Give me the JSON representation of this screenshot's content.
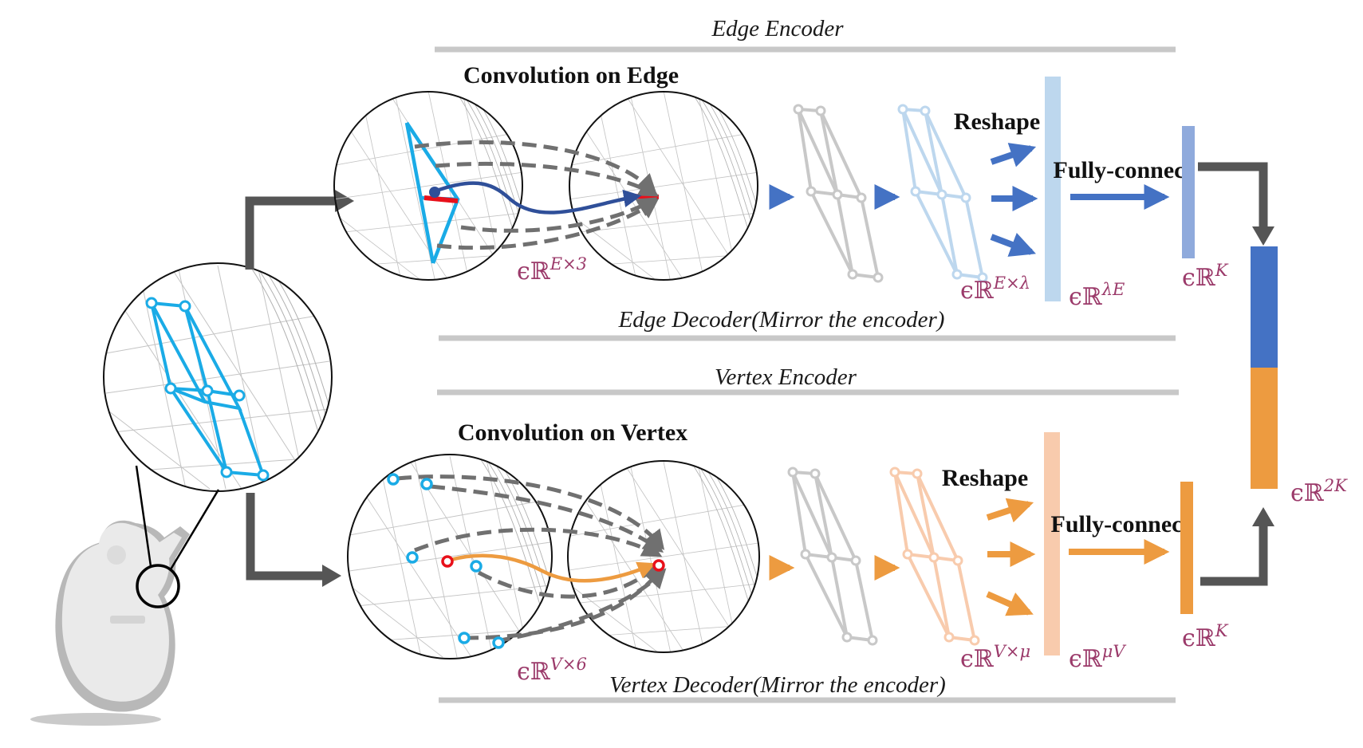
{
  "labels": {
    "edge_encoder": "Edge Encoder",
    "edge_decoder": "Edge Decoder(Mirror the encoder)",
    "vertex_encoder": "Vertex Encoder",
    "vertex_decoder": "Vertex Decoder(Mirror the encoder)",
    "conv_edge": "Convolution on Edge",
    "conv_vertex": "Convolution on Vertex",
    "reshape": "Reshape",
    "fully_connect": "Fully-connect"
  },
  "math": {
    "edge_input": {
      "prefix": "ϵℝ",
      "sup": "E×3"
    },
    "edge_feat": {
      "prefix": "ϵℝ",
      "sup": "E×λ"
    },
    "edge_flat": {
      "prefix": "ϵℝ",
      "sup": "λE"
    },
    "edge_latent": {
      "prefix": "ϵℝ",
      "sup": "K"
    },
    "vertex_input": {
      "prefix": "ϵℝ",
      "sup": "V×6"
    },
    "vertex_feat": {
      "prefix": "ϵℝ",
      "sup": "V×μ"
    },
    "vertex_flat": {
      "prefix": "ϵℝ",
      "sup": "μV"
    },
    "vertex_latent": {
      "prefix": "ϵℝ",
      "sup": "K"
    },
    "concat": {
      "prefix": "ϵℝ",
      "sup": "2K"
    }
  },
  "colors": {
    "edge_blue": "#4472c4",
    "edge_light": "#bdd7ee",
    "edge_mid": "#8faadc",
    "vertex_orange": "#ed9b40",
    "vertex_light": "#f8cbad",
    "mesh_cyan": "#1aabe6",
    "highlight_red": "#e8101a",
    "path_navy": "#2f4f99",
    "arrow_gray": "#555555",
    "guide_gray": "#c8c8c8",
    "math_purple": "#9b3a6a"
  },
  "icons": {
    "model": "guitar-3d-model-icon"
  }
}
